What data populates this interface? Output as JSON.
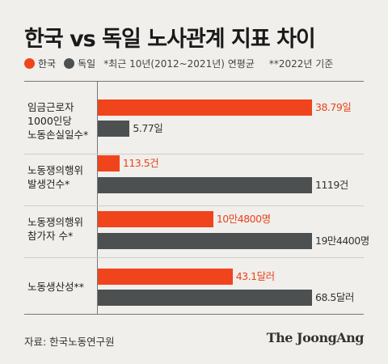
{
  "title": "한국 vs 독일 노사관계 지표 차이",
  "legend": {
    "korea": "한국",
    "germany": "독일",
    "note1": "*최근 10년(2012~2021년) 연평균",
    "note2": "**2022년 기준"
  },
  "colors": {
    "korea": "#f0441c",
    "germany": "#4d5050"
  },
  "source": "자료: 한국노동연구원",
  "brand": "The JoongAng",
  "chart_data": {
    "type": "bar",
    "orientation": "horizontal",
    "categories": [
      "임금근로자\n1000인당\n노동손실일수*",
      "노동쟁의행위\n발생건수*",
      "노동쟁의행위\n참가자 수*",
      "노동생산성**"
    ],
    "series": [
      {
        "name": "한국",
        "values": [
          38.79,
          113.5,
          104800,
          43.1
        ],
        "labels": [
          "38.79일",
          "113.5건",
          "10만4800명",
          "43.1달러"
        ]
      },
      {
        "name": "독일",
        "values": [
          5.77,
          1119,
          194400,
          68.5
        ],
        "labels": [
          "5.77일",
          "1119건",
          "19만4400명",
          "68.5달러"
        ]
      }
    ]
  }
}
